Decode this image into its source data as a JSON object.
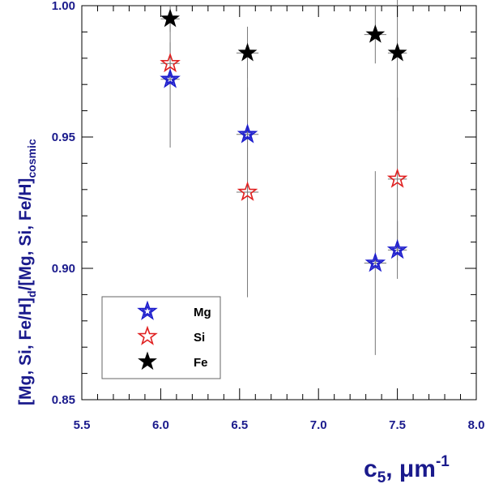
{
  "chart_data": {
    "type": "scatter",
    "title": "",
    "xlabel": {
      "main": "c",
      "sub": "5",
      "rest": ", μm",
      "sup": "-1"
    },
    "ylabel": {
      "p1": "[Mg, Si, Fe/H]",
      "sub1": "d",
      "p2": "/[Mg, Si, Fe/H]",
      "sub2": "cosmic"
    },
    "xlim": [
      5.5,
      8.0
    ],
    "ylim": [
      0.85,
      1.0
    ],
    "xticks": [
      "5.5",
      "6.0",
      "6.5",
      "7.0",
      "7.5",
      "8.0"
    ],
    "yticks": [
      "0.85",
      "0.90",
      "0.95",
      "1.00"
    ],
    "grid": false,
    "legend_position": "bottom-left",
    "series": [
      {
        "name": "Mg",
        "marker": "open-star-double",
        "color": "#1a1acc",
        "points": [
          {
            "x": 6.06,
            "y": 0.972,
            "xerr": 0.06,
            "yerr": 0.026
          },
          {
            "x": 6.55,
            "y": 0.951,
            "xerr": 0.07,
            "yerr": 0.021
          },
          {
            "x": 7.36,
            "y": 0.902,
            "xerr": 0.07,
            "yerr": 0.035
          },
          {
            "x": 7.5,
            "y": 0.907,
            "xerr": 0.06,
            "yerr": 0.011
          }
        ]
      },
      {
        "name": "Si",
        "marker": "open-star",
        "color": "#e02020",
        "points": [
          {
            "x": 6.06,
            "y": 0.978,
            "xerr": 0.06,
            "yerr": 0.008
          },
          {
            "x": 6.55,
            "y": 0.929,
            "xerr": 0.07,
            "yerr": 0.04
          },
          {
            "x": 7.5,
            "y": 0.934,
            "xerr": 0.06,
            "yerr": 0.031
          }
        ]
      },
      {
        "name": "Fe",
        "marker": "filled-star",
        "color": "#000000",
        "points": [
          {
            "x": 6.06,
            "y": 0.995,
            "xerr": 0.06,
            "yerr": 0.005
          },
          {
            "x": 6.55,
            "y": 0.982,
            "xerr": 0.07,
            "yerr": 0.01
          },
          {
            "x": 7.36,
            "y": 0.989,
            "xerr": 0.07,
            "yerr": 0.011
          },
          {
            "x": 7.5,
            "y": 0.982,
            "xerr": 0.06,
            "yerr": 0.022
          }
        ]
      }
    ]
  }
}
